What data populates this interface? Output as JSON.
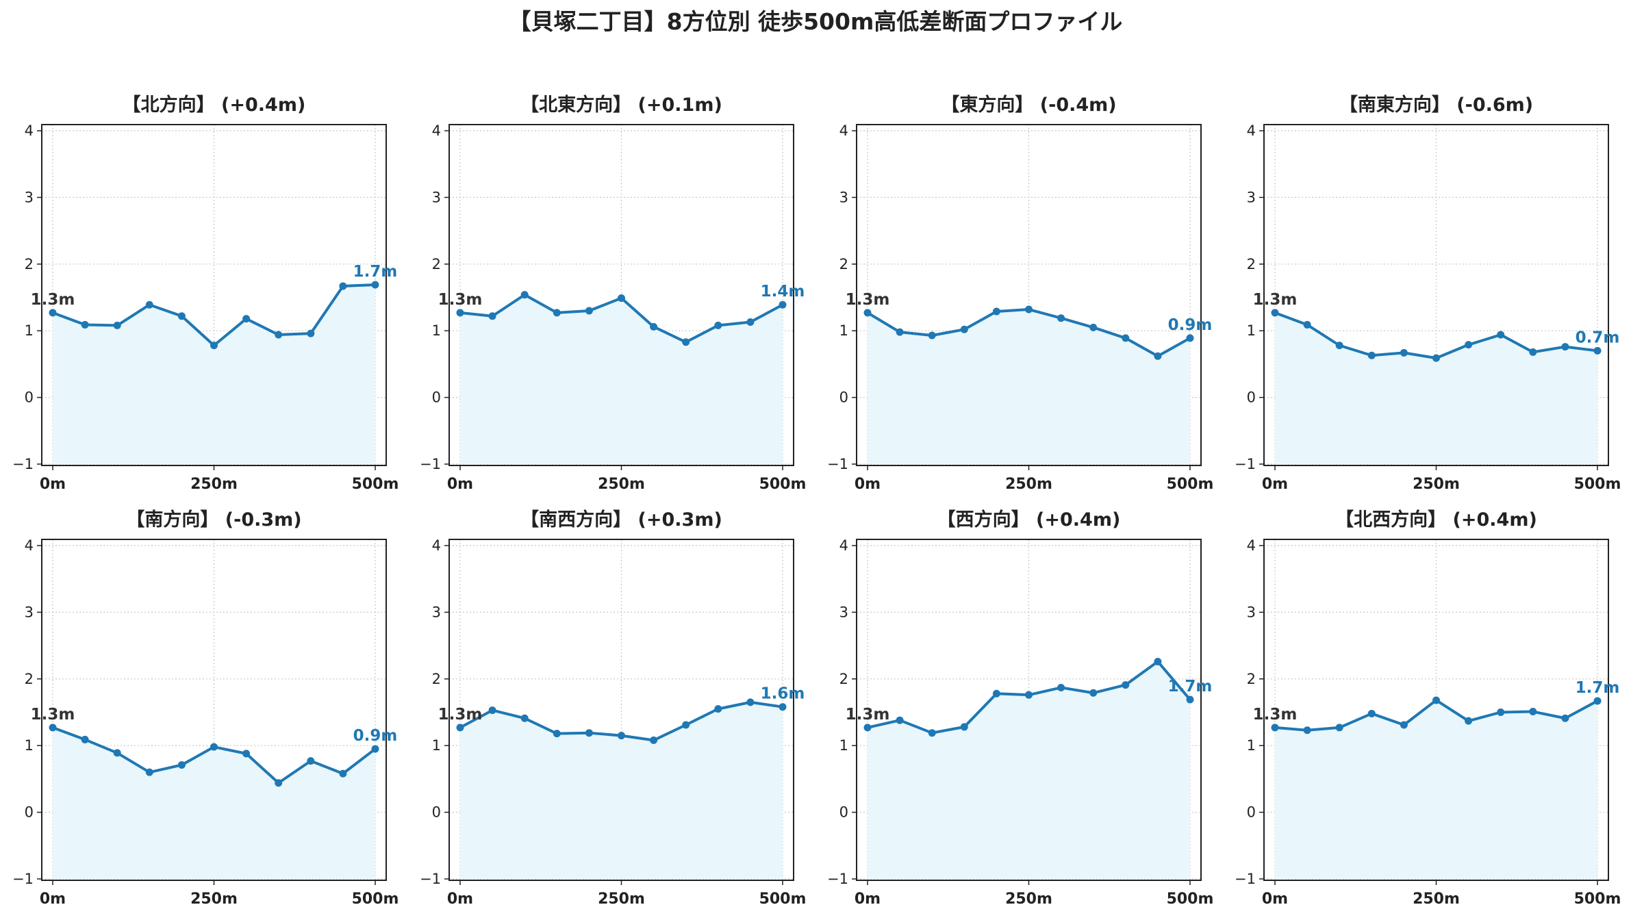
{
  "figure": {
    "title": "【貝塚二丁目】8方位別 徒歩500m高低差断面プロファイル"
  },
  "colors": {
    "line": "#1f78b4",
    "fill": "#e9f6fb",
    "start_label": "#333333",
    "end_label": "#1f78b4",
    "grid": "#c8c8c8",
    "axis": "#222222"
  },
  "chart_data": [
    {
      "type": "line",
      "title": "【北方向】 (+0.4m)",
      "x": [
        0,
        50,
        100,
        150,
        200,
        250,
        300,
        350,
        400,
        450,
        500
      ],
      "values": [
        1.27,
        1.09,
        1.08,
        1.39,
        1.22,
        0.78,
        1.18,
        0.94,
        0.96,
        1.67,
        1.69
      ],
      "xticks": [
        "0m",
        "250m",
        "500m"
      ],
      "ylim": [
        -1,
        4
      ],
      "yticks": [
        -1,
        0,
        1,
        2,
        3,
        4
      ],
      "start_label": "1.3m",
      "end_label": "1.7m",
      "grid": true
    },
    {
      "type": "line",
      "title": "【北東方向】 (+0.1m)",
      "x": [
        0,
        50,
        100,
        150,
        200,
        250,
        300,
        350,
        400,
        450,
        500
      ],
      "values": [
        1.27,
        1.22,
        1.54,
        1.27,
        1.3,
        1.49,
        1.06,
        0.83,
        1.08,
        1.13,
        1.39
      ],
      "xticks": [
        "0m",
        "250m",
        "500m"
      ],
      "ylim": [
        -1,
        4
      ],
      "yticks": [
        -1,
        0,
        1,
        2,
        3,
        4
      ],
      "start_label": "1.3m",
      "end_label": "1.4m",
      "grid": true
    },
    {
      "type": "line",
      "title": "【東方向】 (-0.4m)",
      "x": [
        0,
        50,
        100,
        150,
        200,
        250,
        300,
        350,
        400,
        450,
        500
      ],
      "values": [
        1.27,
        0.98,
        0.93,
        1.02,
        1.29,
        1.32,
        1.19,
        1.05,
        0.89,
        0.62,
        0.89
      ],
      "xticks": [
        "0m",
        "250m",
        "500m"
      ],
      "ylim": [
        -1,
        4
      ],
      "yticks": [
        -1,
        0,
        1,
        2,
        3,
        4
      ],
      "start_label": "1.3m",
      "end_label": "0.9m",
      "grid": true
    },
    {
      "type": "line",
      "title": "【南東方向】 (-0.6m)",
      "x": [
        0,
        50,
        100,
        150,
        200,
        250,
        300,
        350,
        400,
        450,
        500
      ],
      "values": [
        1.27,
        1.09,
        0.78,
        0.63,
        0.67,
        0.59,
        0.79,
        0.94,
        0.68,
        0.76,
        0.7
      ],
      "xticks": [
        "0m",
        "250m",
        "500m"
      ],
      "ylim": [
        -1,
        4
      ],
      "yticks": [
        -1,
        0,
        1,
        2,
        3,
        4
      ],
      "start_label": "1.3m",
      "end_label": "0.7m",
      "grid": true
    },
    {
      "type": "line",
      "title": "【南方向】 (-0.3m)",
      "x": [
        0,
        50,
        100,
        150,
        200,
        250,
        300,
        350,
        400,
        450,
        500
      ],
      "values": [
        1.27,
        1.09,
        0.89,
        0.6,
        0.71,
        0.98,
        0.88,
        0.44,
        0.77,
        0.58,
        0.95
      ],
      "xticks": [
        "0m",
        "250m",
        "500m"
      ],
      "ylim": [
        -1,
        4
      ],
      "yticks": [
        -1,
        0,
        1,
        2,
        3,
        4
      ],
      "start_label": "1.3m",
      "end_label": "0.9m",
      "grid": true
    },
    {
      "type": "line",
      "title": "【南西方向】 (+0.3m)",
      "x": [
        0,
        50,
        100,
        150,
        200,
        250,
        300,
        350,
        400,
        450,
        500
      ],
      "values": [
        1.27,
        1.53,
        1.41,
        1.18,
        1.19,
        1.15,
        1.08,
        1.31,
        1.55,
        1.65,
        1.58
      ],
      "xticks": [
        "0m",
        "250m",
        "500m"
      ],
      "ylim": [
        -1,
        4
      ],
      "yticks": [
        -1,
        0,
        1,
        2,
        3,
        4
      ],
      "start_label": "1.3m",
      "end_label": "1.6m",
      "grid": true
    },
    {
      "type": "line",
      "title": "【西方向】 (+0.4m)",
      "x": [
        0,
        50,
        100,
        150,
        200,
        250,
        300,
        350,
        400,
        450,
        500
      ],
      "values": [
        1.27,
        1.38,
        1.19,
        1.28,
        1.78,
        1.76,
        1.87,
        1.79,
        1.91,
        2.26,
        1.69
      ],
      "xticks": [
        "0m",
        "250m",
        "500m"
      ],
      "ylim": [
        -1,
        4
      ],
      "yticks": [
        -1,
        0,
        1,
        2,
        3,
        4
      ],
      "start_label": "1.3m",
      "end_label": "1.7m",
      "grid": true
    },
    {
      "type": "line",
      "title": "【北西方向】 (+0.4m)",
      "x": [
        0,
        50,
        100,
        150,
        200,
        250,
        300,
        350,
        400,
        450,
        500
      ],
      "values": [
        1.27,
        1.23,
        1.27,
        1.48,
        1.31,
        1.68,
        1.37,
        1.5,
        1.51,
        1.41,
        1.67
      ],
      "xticks": [
        "0m",
        "250m",
        "500m"
      ],
      "ylim": [
        -1,
        4
      ],
      "yticks": [
        -1,
        0,
        1,
        2,
        3,
        4
      ],
      "start_label": "1.3m",
      "end_label": "1.7m",
      "grid": true
    }
  ]
}
